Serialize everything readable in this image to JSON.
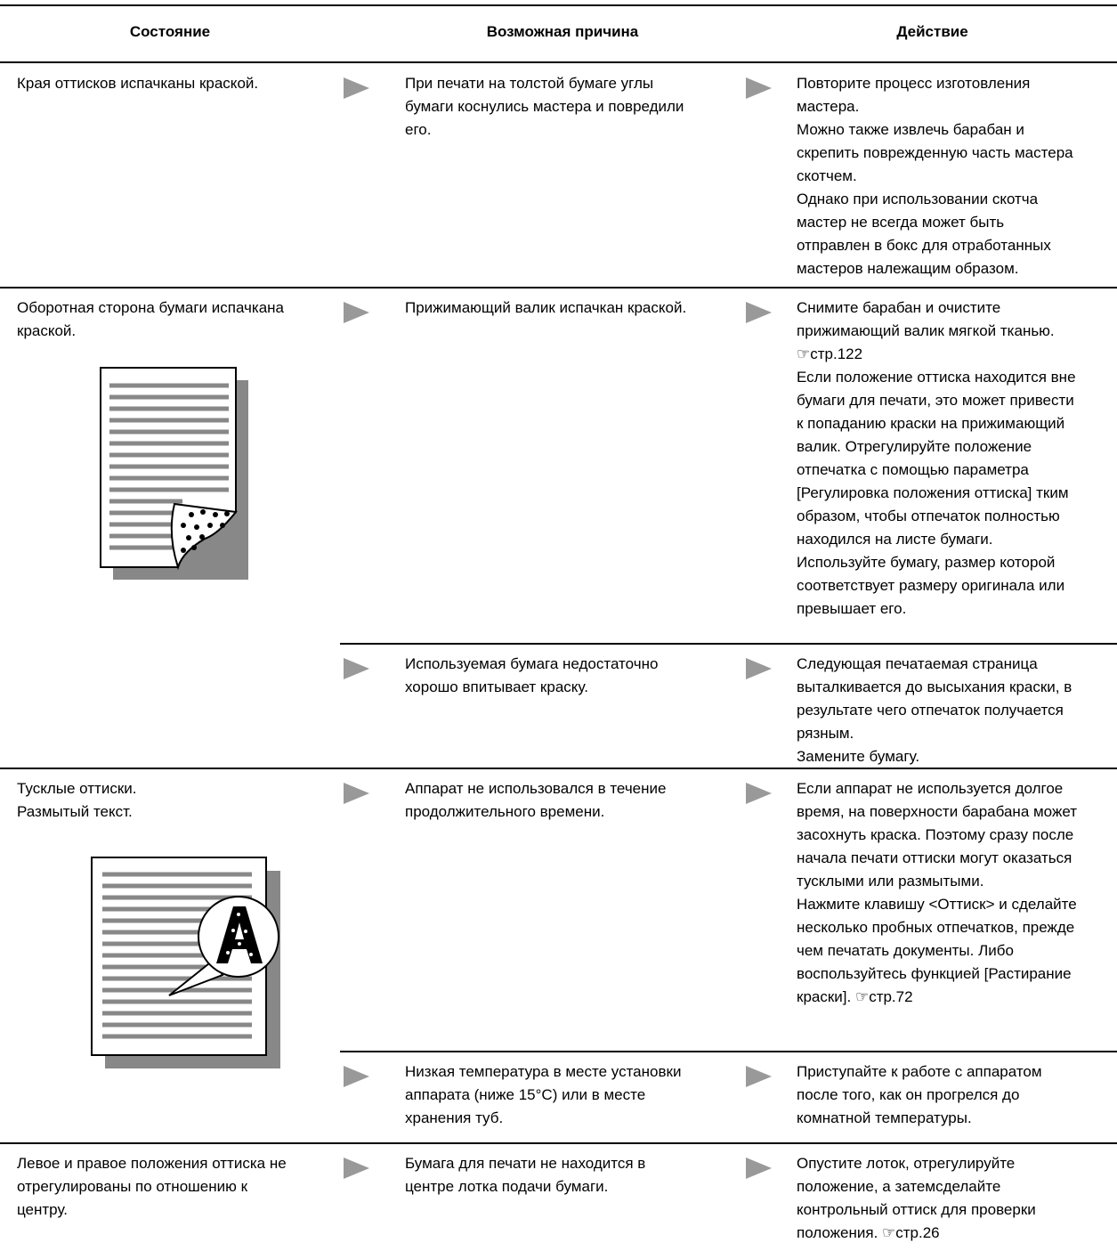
{
  "header": [
    "Состояние",
    "Возможная причина",
    "Действие"
  ],
  "rows": [
    {
      "state": [
        "Края оттисков испачканы краской."
      ],
      "causes": [
        {
          "cause": [
            "При печати на толстой бумаге углы",
            "бумаги коснулись мастера и повредили",
            "его."
          ],
          "action": [
            "Повторите процесс изготовления",
            "мастера.",
            "Можно также извлечь барабан и",
            "скрепить поврежденную часть мастера",
            "скотчем.",
            "Однако при использовании скотча",
            "мастер не всегда может быть",
            "отправлен в бокс для отработанных",
            "мастеров належащим образом."
          ]
        }
      ]
    },
    {
      "state": [
        "Оборотная сторона бумаги испачкана",
        "краской."
      ],
      "causes": [
        {
          "cause": [
            "Прижимающий валик испачкан краской."
          ],
          "action": [
            "Снимите барабан и очистите",
            "прижимающий валик мягкой тканью.",
            "☞стр.122",
            "Если положение оттиска находится вне",
            "бумаги для печати, это может привести",
            "к попаданию краски на прижимающий",
            "валик.  Отрегулируйте положение",
            "отпечатка с помощью параметра",
            "[Регулировка положения оттиска] тким",
            "образом, чтобы отпечаток полностью",
            "находился на листе бумаги.",
            "Используйте бумагу, размер которой",
            "соответствует размеру оригинала или",
            "превышает его."
          ]
        },
        {
          "cause": [
            "Используемая бумага недостаточно",
            "хорошо впитывает краску."
          ],
          "action": [
            "Следующая печатаемая страница",
            "выталкивается до высыхания краски, в",
            "результате чего отпечаток получается",
            "рязным.",
            "Замените бумагу."
          ]
        }
      ]
    },
    {
      "state": [
        "Тусклые оттиски.",
        "Размытый текст."
      ],
      "causes": [
        {
          "cause": [
            "Аппарат не использовался в течение",
            "продолжительного времени."
          ],
          "action": [
            "Если аппарат не используется долгое",
            "время, на поверхности барабана может",
            "засохнуть краска.  Поэтому сразу после",
            "начала печати оттиски могут оказаться",
            "тусклыми или размытыми.",
            "Нажмите клавишу <Оттиск> и сделайте",
            "несколько пробных отпечатков, прежде",
            "чем печатать документы.   Либо",
            "воспользуйтесь функцией [Растирание",
            "краски]. ☞стр.72"
          ]
        },
        {
          "cause": [
            "Низкая температура в месте установки",
            "аппарата (ниже 15°C) или в месте",
            "хранения туб."
          ],
          "action": [
            "Приступайте к работе с аппаратом",
            "после того, как он прогрелся до",
            "комнатной температуры."
          ]
        }
      ]
    },
    {
      "state": [
        "Левое и правое положения оттиска не",
        "отрегулированы по отношению к",
        "центру."
      ],
      "causes": [
        {
          "cause": [
            "Бумага для печати не находится в",
            "центре лотка подачи бумаги."
          ],
          "action": [
            "Опустите лоток, отрегулируйте",
            "положение, а затемсделайте",
            "контрольный оттиск для проверки",
            "положения.  ☞стр.26"
          ]
        }
      ]
    }
  ]
}
